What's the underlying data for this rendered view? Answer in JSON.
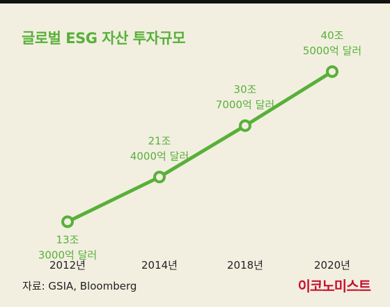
{
  "title": "글로벌 ESG 자산 투자규모",
  "source": "자료: GSIA, Bloomberg",
  "brand": "이코노미스트",
  "colors": {
    "line": "#58b038",
    "label": "#58b038",
    "axis": "#222222",
    "background": "#f2efe1",
    "brand": "#c8102e"
  },
  "chart_data": {
    "type": "line",
    "title": "글로벌 ESG 자산 투자규모",
    "categories": [
      "2012년",
      "2014년",
      "2018년",
      "2020년"
    ],
    "values": [
      13.3,
      21.4,
      30.7,
      40.5
    ],
    "data_labels": [
      [
        "13조",
        "3000억 달러"
      ],
      [
        "21조",
        "4000억 달러"
      ],
      [
        "30조",
        "7000억 달러"
      ],
      [
        "40조",
        "5000억 달러"
      ]
    ],
    "label_positions": [
      "below",
      "above",
      "above",
      "above"
    ],
    "xlabel": "",
    "ylabel": "",
    "ylim": [
      0,
      45
    ],
    "grid": false
  }
}
